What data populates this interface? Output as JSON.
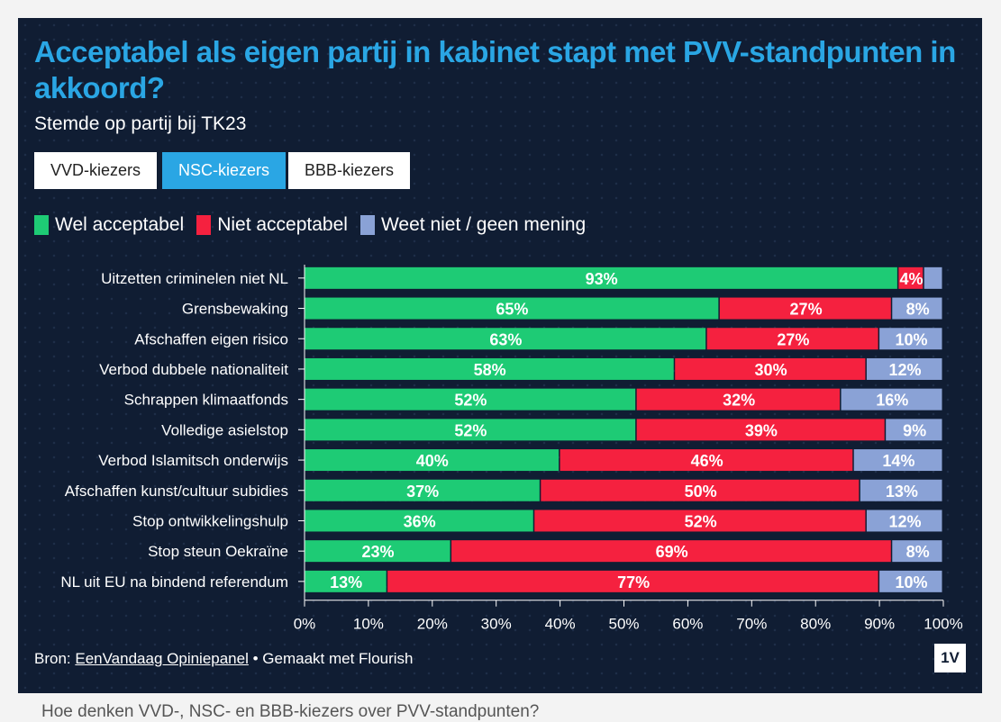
{
  "title": "Acceptabel als eigen partij in kabinet stapt met PVV-standpunten in akkoord?",
  "subtitle": "Stemde op partij bij TK23",
  "tabs": [
    {
      "label": "VVD-kiezers",
      "active": false
    },
    {
      "label": "NSC-kiezers",
      "active": true
    },
    {
      "label": "BBB-kiezers",
      "active": false
    }
  ],
  "source": {
    "prefix": "Bron: ",
    "link": "EenVandaag Opiniepanel",
    "suffix": " • Gemaakt met Flourish"
  },
  "logo": "1V",
  "caption": "Hoe denken VVD-, NSC- en BBB-kiezers over PVV-standpunten?",
  "colors": {
    "accent": "#2aa6e4",
    "background": "#101d33",
    "wel": "#1ecb75",
    "niet": "#f5213f",
    "weet": "#8aa2d6"
  },
  "chart_data": {
    "type": "bar",
    "orientation": "horizontal",
    "stacked": true,
    "title": "Acceptabel als eigen partij in kabinet stapt met PVV-standpunten in akkoord?",
    "subtitle": "Stemde op partij bij TK23",
    "categories": [
      "Uitzetten criminelen niet NL",
      "Grensbewaking",
      "Afschaffen eigen risico",
      "Verbod dubbele nationaliteit",
      "Schrappen klimaatfonds",
      "Volledige asielstop",
      "Verbod Islamitsch onderwijs",
      "Afschaffen kunst/cultuur subidies",
      "Stop ontwikkelingshulp",
      "Stop steun Oekraïne",
      "NL uit EU na bindend referendum"
    ],
    "series": [
      {
        "name": "Wel acceptabel",
        "color": "#1ecb75",
        "values": [
          93,
          65,
          63,
          58,
          52,
          52,
          40,
          37,
          36,
          23,
          13
        ]
      },
      {
        "name": "Niet acceptabel",
        "color": "#f5213f",
        "values": [
          4,
          27,
          27,
          30,
          32,
          39,
          46,
          50,
          52,
          69,
          77
        ]
      },
      {
        "name": "Weet niet / geen mening",
        "color": "#8aa2d6",
        "values": [
          3,
          8,
          10,
          12,
          16,
          9,
          14,
          13,
          12,
          8,
          10
        ]
      }
    ],
    "data_labels": [
      [
        "93%",
        "4%",
        ""
      ],
      [
        "65%",
        "27%",
        "8%"
      ],
      [
        "63%",
        "27%",
        "10%"
      ],
      [
        "58%",
        "30%",
        "12%"
      ],
      [
        "52%",
        "32%",
        "16%"
      ],
      [
        "52%",
        "39%",
        "9%"
      ],
      [
        "40%",
        "46%",
        "14%"
      ],
      [
        "37%",
        "50%",
        "13%"
      ],
      [
        "36%",
        "52%",
        "12%"
      ],
      [
        "23%",
        "69%",
        "8%"
      ],
      [
        "13%",
        "77%",
        "10%"
      ]
    ],
    "xlim": [
      0,
      100
    ],
    "xticks": [
      "0%",
      "10%",
      "20%",
      "30%",
      "40%",
      "50%",
      "60%",
      "70%",
      "80%",
      "90%",
      "100%"
    ],
    "legend": "top-left",
    "grid": false
  }
}
